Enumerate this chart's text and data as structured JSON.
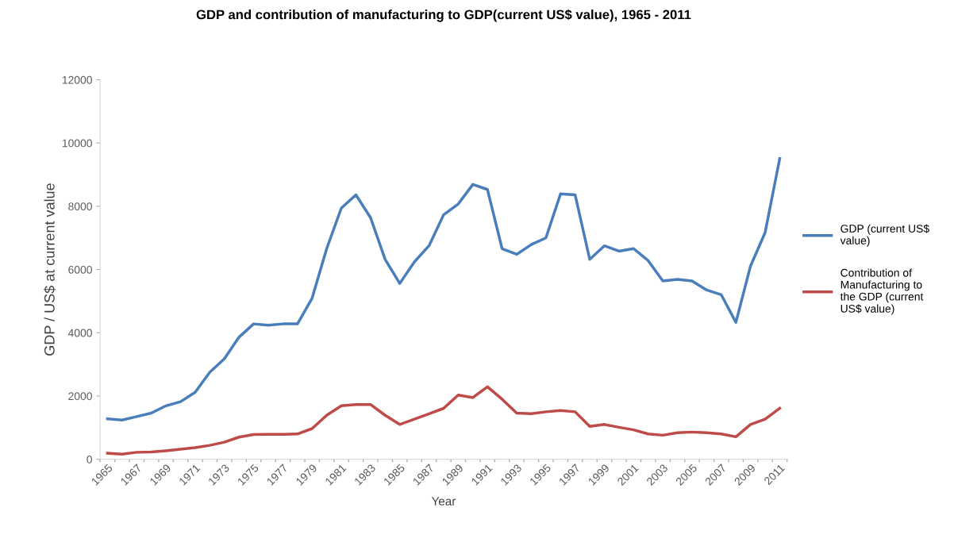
{
  "chart_data": {
    "type": "line",
    "title": "GDP and contribution of manufacturing to GDP(current US$ value), 1965 - 2011",
    "xlabel": "Year",
    "ylabel": "GDP / US$ at current value",
    "categories": [
      "1965",
      null,
      "1967",
      null,
      "1969",
      null,
      "1971",
      null,
      "1973",
      null,
      "1975",
      null,
      "1977",
      null,
      "1979",
      null,
      "1981",
      null,
      "1983",
      null,
      "1985",
      null,
      "1987",
      null,
      "1989",
      null,
      "1991",
      null,
      "1993",
      null,
      "1995",
      null,
      "1997",
      null,
      "1999",
      null,
      "2001",
      null,
      "2003",
      null,
      "2005",
      null,
      "2007",
      null,
      "2009",
      null,
      "2011"
    ],
    "series": [
      {
        "name": "GDP (current US$ value)",
        "color": "#4a7ebb",
        "values": [
          1280,
          1240,
          1350,
          1460,
          1690,
          1820,
          2120,
          2750,
          3180,
          3860,
          4280,
          4240,
          4280,
          4280,
          5090,
          6660,
          7940,
          8360,
          7640,
          6320,
          5560,
          6240,
          6750,
          7730,
          8070,
          8690,
          8530,
          6660,
          6480,
          6790,
          7000,
          8390,
          8360,
          6320,
          6750,
          6580,
          6660,
          6280,
          5640,
          5690,
          5640,
          5350,
          5200,
          4330,
          6110,
          7170,
          9510
        ]
      },
      {
        "name": "Contribution of Manufacturing to the GDP (current US$ value)",
        "color": "#be4b48",
        "values": [
          190,
          160,
          220,
          230,
          270,
          320,
          370,
          440,
          540,
          700,
          780,
          790,
          790,
          800,
          970,
          1390,
          1690,
          1730,
          1730,
          1390,
          1100,
          1270,
          1440,
          1610,
          2030,
          1950,
          2290,
          1900,
          1460,
          1440,
          1500,
          1540,
          1500,
          1040,
          1100,
          1010,
          930,
          800,
          760,
          840,
          860,
          840,
          800,
          710,
          1100,
          1270,
          1610
        ]
      }
    ],
    "ylim": [
      0,
      12000
    ],
    "yticks": [
      0,
      2000,
      4000,
      6000,
      8000,
      10000,
      12000
    ],
    "grid": false,
    "legend": "right",
    "marker": "none",
    "line_style": "solid"
  }
}
